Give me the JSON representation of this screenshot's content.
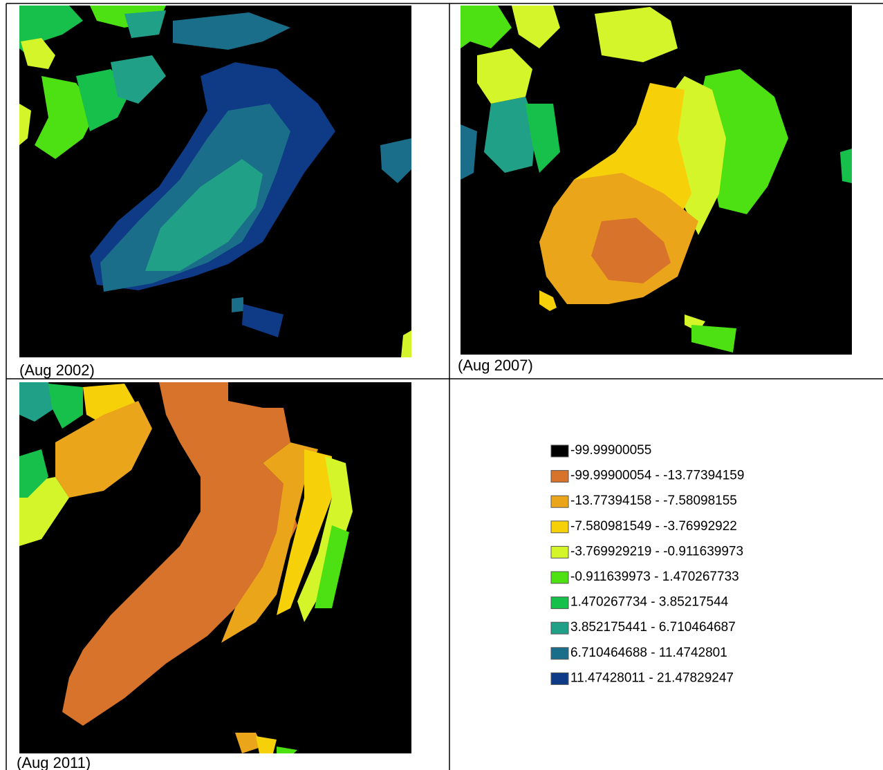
{
  "panels": [
    {
      "caption": "(Aug 2002)"
    },
    {
      "caption": "(Aug 2007)"
    },
    {
      "caption": "(Aug 2011)"
    }
  ],
  "legend": {
    "items": [
      {
        "label": "-99.99900055",
        "color": "#000000"
      },
      {
        "label": "-99.99900054 - -13.77394159",
        "color": "#d7732a"
      },
      {
        "label": "-13.77394158 - -7.58098155",
        "color": "#eba51a"
      },
      {
        "label": "-7.580981549 - -3.76992922",
        "color": "#f6d10a"
      },
      {
        "label": "-3.769929219 - -0.911639973",
        "color": "#d4f52a"
      },
      {
        "label": "-0.911639973 - 1.470267733",
        "color": "#4de012"
      },
      {
        "label": "1.470267734 - 3.85217544",
        "color": "#16c04a"
      },
      {
        "label": "3.852175441 - 6.710464687",
        "color": "#20a086"
      },
      {
        "label": "6.710464688 - 11.4742801",
        "color": "#1a6e8a"
      },
      {
        "label": "11.47428011 - 21.47829247",
        "color": "#0e3a86"
      }
    ]
  }
}
